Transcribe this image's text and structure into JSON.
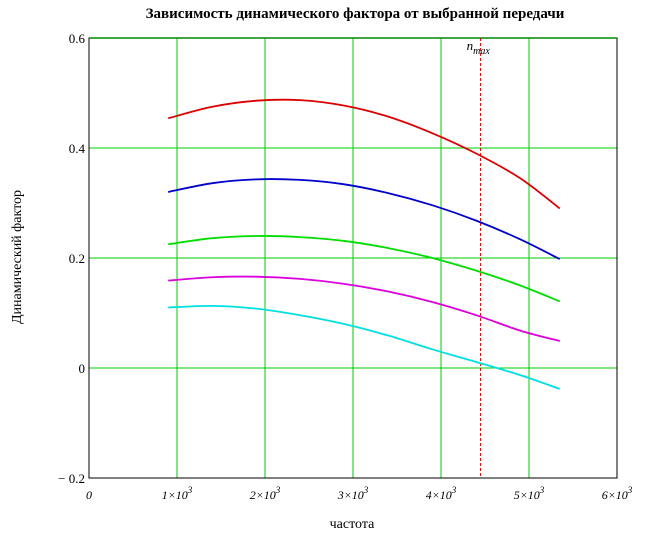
{
  "chart_data": {
    "type": "line",
    "title": "Зависимость динамического фактора от выбранной передачи",
    "xlabel": "частота",
    "ylabel": "Динамический фактор",
    "xlim": [
      0,
      6000
    ],
    "ylim": [
      -0.2,
      0.6
    ],
    "grid": true,
    "x_ticks": [
      {
        "value": 0,
        "mant": "0",
        "exp": ""
      },
      {
        "value": 1000,
        "mant": "1×10",
        "exp": "3"
      },
      {
        "value": 2000,
        "mant": "2×10",
        "exp": "3"
      },
      {
        "value": 3000,
        "mant": "3×10",
        "exp": "3"
      },
      {
        "value": 4000,
        "mant": "4×10",
        "exp": "3"
      },
      {
        "value": 5000,
        "mant": "5×10",
        "exp": "3"
      },
      {
        "value": 6000,
        "mant": "6×10",
        "exp": "3"
      }
    ],
    "y_ticks": [
      {
        "value": 0.6,
        "label": "0.6"
      },
      {
        "value": 0.4,
        "label": "0.4"
      },
      {
        "value": 0.2,
        "label": "0.2"
      },
      {
        "value": 0,
        "label": "0"
      },
      {
        "value": -0.2,
        "label": "− 0.2"
      }
    ],
    "vline": {
      "x": 4450,
      "label_base": "n",
      "label_sub": "max",
      "color": "#cc0000"
    },
    "x": [
      900,
      1400,
      1900,
      2400,
      2900,
      3400,
      3900,
      4400,
      4900,
      5350
    ],
    "series": [
      {
        "color": "#dd0000",
        "values": [
          0.454,
          0.475,
          0.486,
          0.487,
          0.477,
          0.457,
          0.427,
          0.39,
          0.345,
          0.29
        ]
      },
      {
        "color": "#0000cc",
        "values": [
          0.32,
          0.336,
          0.343,
          0.342,
          0.334,
          0.318,
          0.296,
          0.268,
          0.234,
          0.198
        ]
      },
      {
        "color": "#00dd00",
        "values": [
          0.225,
          0.236,
          0.24,
          0.238,
          0.231,
          0.218,
          0.2,
          0.177,
          0.15,
          0.121
        ]
      },
      {
        "color": "#dd00dd",
        "values": [
          0.159,
          0.165,
          0.166,
          0.162,
          0.153,
          0.139,
          0.12,
          0.096,
          0.068,
          0.049
        ]
      },
      {
        "color": "#00e0e0",
        "values": [
          0.11,
          0.113,
          0.108,
          0.096,
          0.08,
          0.059,
          0.034,
          0.011,
          -0.013,
          -0.038
        ]
      }
    ]
  }
}
